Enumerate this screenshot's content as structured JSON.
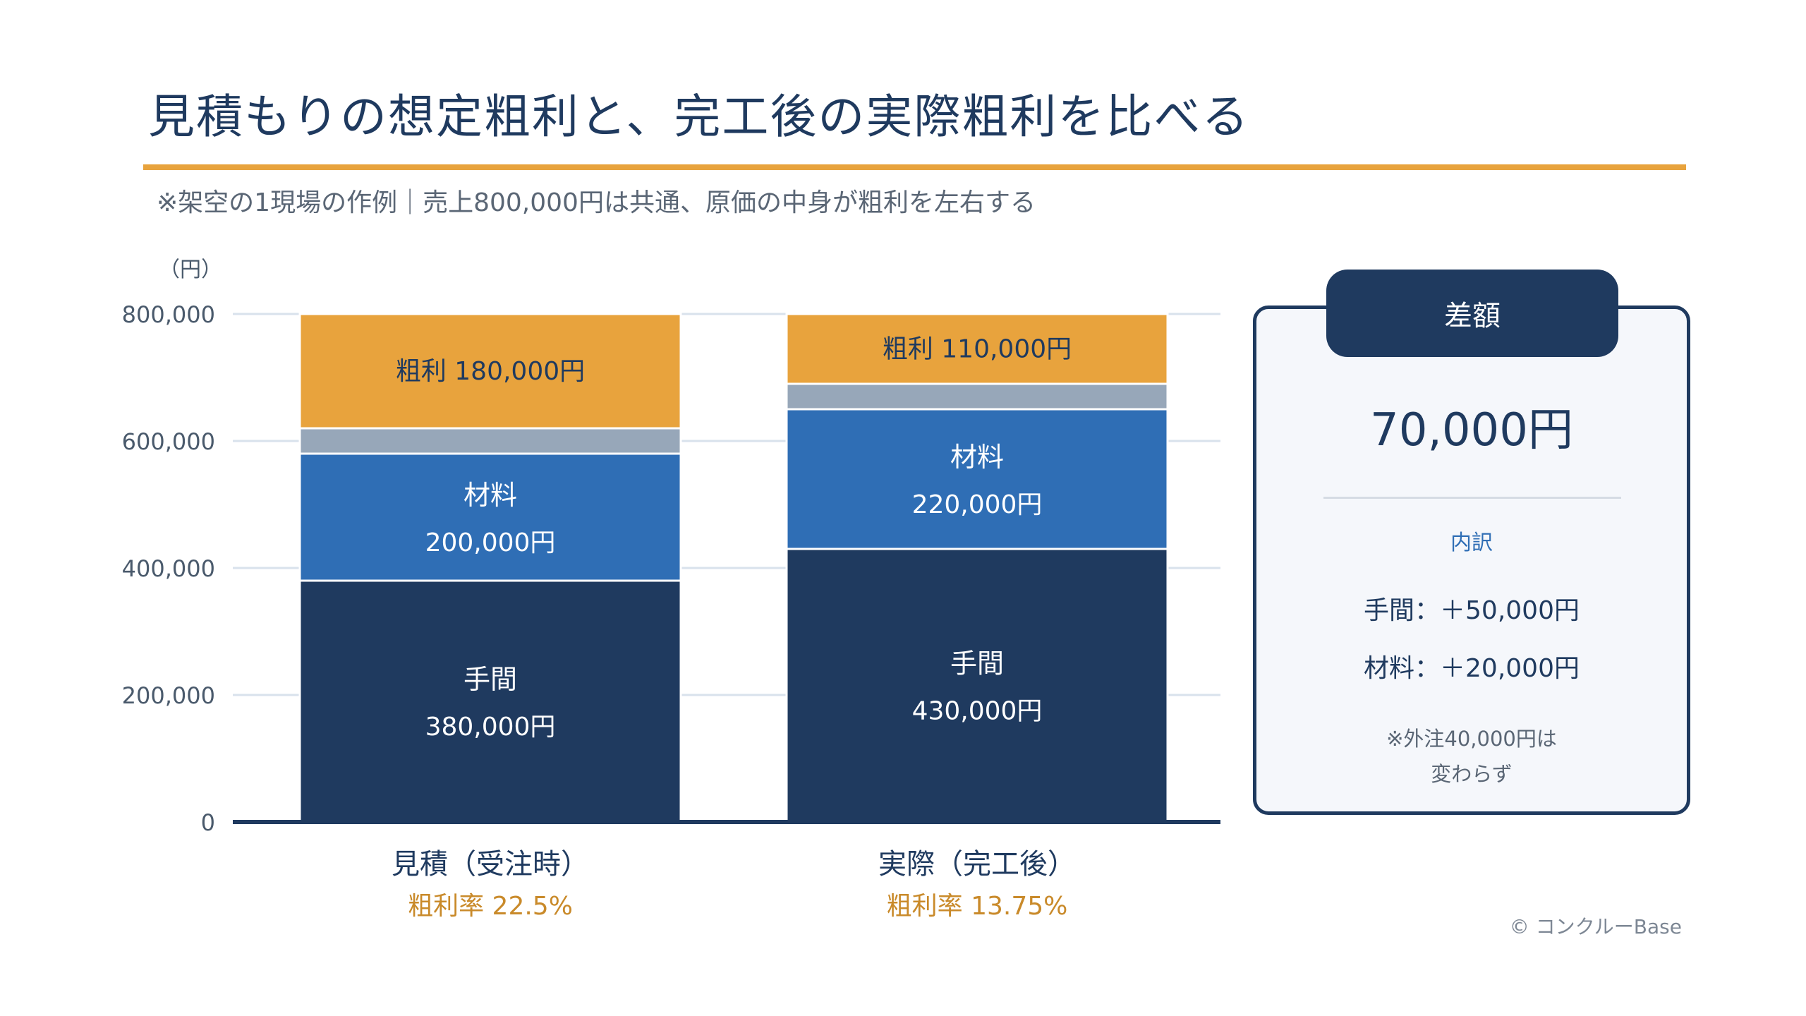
{
  "title": "見積もりの想定粗利と、完工後の実際粗利を比べる",
  "subtitle": "※架空の1現場の作例｜売上800,000円は共通、原価の中身が粗利を左右する",
  "chart_data": {
    "type": "bar",
    "stacked": true,
    "y_unit_label": "（円）",
    "ylim": [
      0,
      800000
    ],
    "yticks": [
      0,
      200000,
      400000,
      600000,
      800000
    ],
    "ytick_labels": [
      "0",
      "200,000",
      "400,000",
      "600,000",
      "800,000"
    ],
    "grid": true,
    "categories": [
      "見積（受注時）",
      "実際（完工後）"
    ],
    "category_notes": [
      "粗利率 22.5%",
      "粗利率 13.75%"
    ],
    "series": [
      {
        "name": "手間",
        "values": [
          380000,
          430000
        ],
        "color": "#1f3a5f",
        "value_labels": [
          "380,000円",
          "430,000円"
        ]
      },
      {
        "name": "材料",
        "values": [
          200000,
          220000
        ],
        "color": "#2f6eb5",
        "value_labels": [
          "200,000円",
          "220,000円"
        ]
      },
      {
        "name": "",
        "values": [
          40000,
          40000
        ],
        "color": "#97a7b9",
        "value_labels": [
          "",
          ""
        ]
      },
      {
        "name": "粗利",
        "values": [
          180000,
          110000
        ],
        "color": "#e8a33d",
        "value_labels": [
          "粗利 180,000円",
          "粗利 110,000円"
        ]
      }
    ]
  },
  "diff_panel": {
    "tab": "差額",
    "value": "70,000円",
    "subheading": "内訳",
    "items": [
      "手間：＋50,000円",
      "材料：＋20,000円"
    ],
    "note_line1": "※外注40,000円は",
    "note_line2": "変わらず"
  },
  "copyright": "© コンクルーBase",
  "colors": {
    "navy": "#1f3a5f",
    "blue": "#2f6eb5",
    "gray": "#97a7b9",
    "orange": "#e8a33d",
    "accent_text": "#c98a2a"
  }
}
